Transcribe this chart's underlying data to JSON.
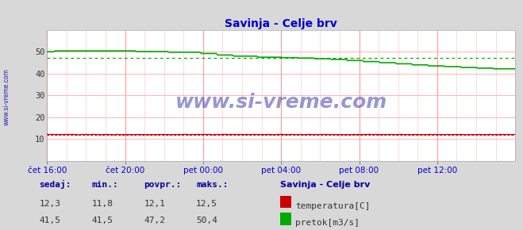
{
  "title": "Savinja - Celje brv",
  "title_color": "#0000cc",
  "bg_color": "#d8d8d8",
  "plot_bg_color": "#ffffff",
  "grid_color_major": "#ff9999",
  "grid_color_minor": "#ffcccc",
  "xlim": [
    0,
    288
  ],
  "ylim": [
    0,
    60
  ],
  "yticks": [
    10,
    20,
    30,
    40,
    50
  ],
  "xtick_labels": [
    "čet 16:00",
    "čet 20:00",
    "pet 00:00",
    "pet 04:00",
    "pet 08:00",
    "pet 12:00"
  ],
  "xtick_positions": [
    0,
    48,
    96,
    144,
    192,
    240
  ],
  "temp_color": "#cc0000",
  "flow_color": "#00aa00",
  "temp_avg": 12.1,
  "temp_min": 11.8,
  "temp_max": 12.5,
  "temp_current": 12.3,
  "flow_avg": 47.2,
  "flow_min": 41.5,
  "flow_max": 50.4,
  "flow_current": 41.5,
  "watermark": "www.si-vreme.com",
  "watermark_color": "#1a1a99",
  "sidebar_text": "www.si-vreme.com",
  "sidebar_color": "#0000aa",
  "legend_title": "Savinja - Celje brv",
  "legend_title_color": "#000099",
  "label_color": "#000099",
  "n_points": 289
}
